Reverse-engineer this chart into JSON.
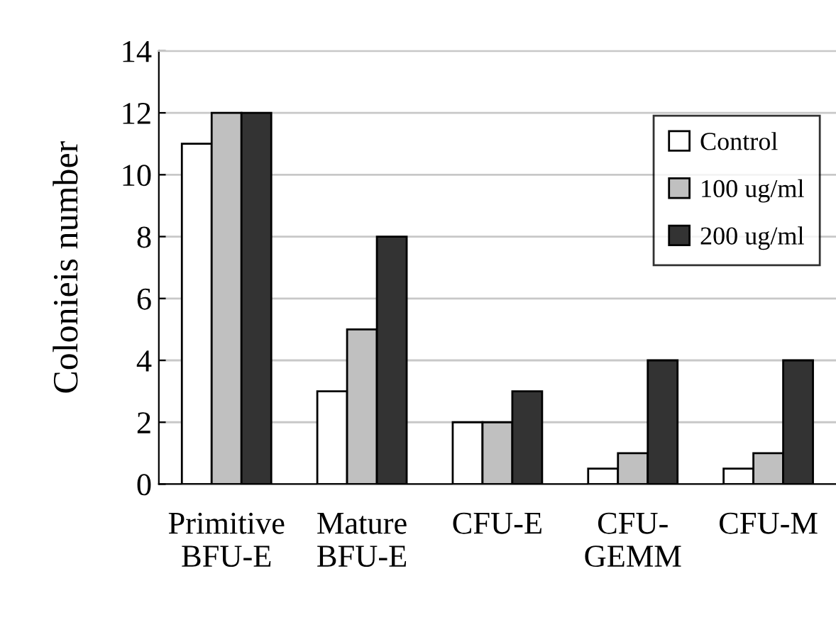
{
  "chart_data": {
    "type": "bar",
    "ylabel": "Colonieis number",
    "categories": [
      "Primitive\nBFU-E",
      "Mature\nBFU-E",
      "CFU-E",
      "CFU-\nGEMM",
      "CFU-M"
    ],
    "series": [
      {
        "name": "Control",
        "color": "#ffffff",
        "values": [
          11,
          3,
          2,
          0.5,
          0.5
        ]
      },
      {
        "name": "100 ug/ml",
        "color": "#c0c0c0",
        "values": [
          12,
          5,
          2,
          1,
          1
        ]
      },
      {
        "name": "200 ug/ml",
        "color": "#333333",
        "values": [
          12,
          8,
          3,
          4,
          4
        ]
      }
    ],
    "ylim": [
      0,
      14
    ],
    "yticks": [
      0,
      2,
      4,
      6,
      8,
      10,
      12,
      14
    ],
    "grid": "y",
    "legend": "top right"
  }
}
